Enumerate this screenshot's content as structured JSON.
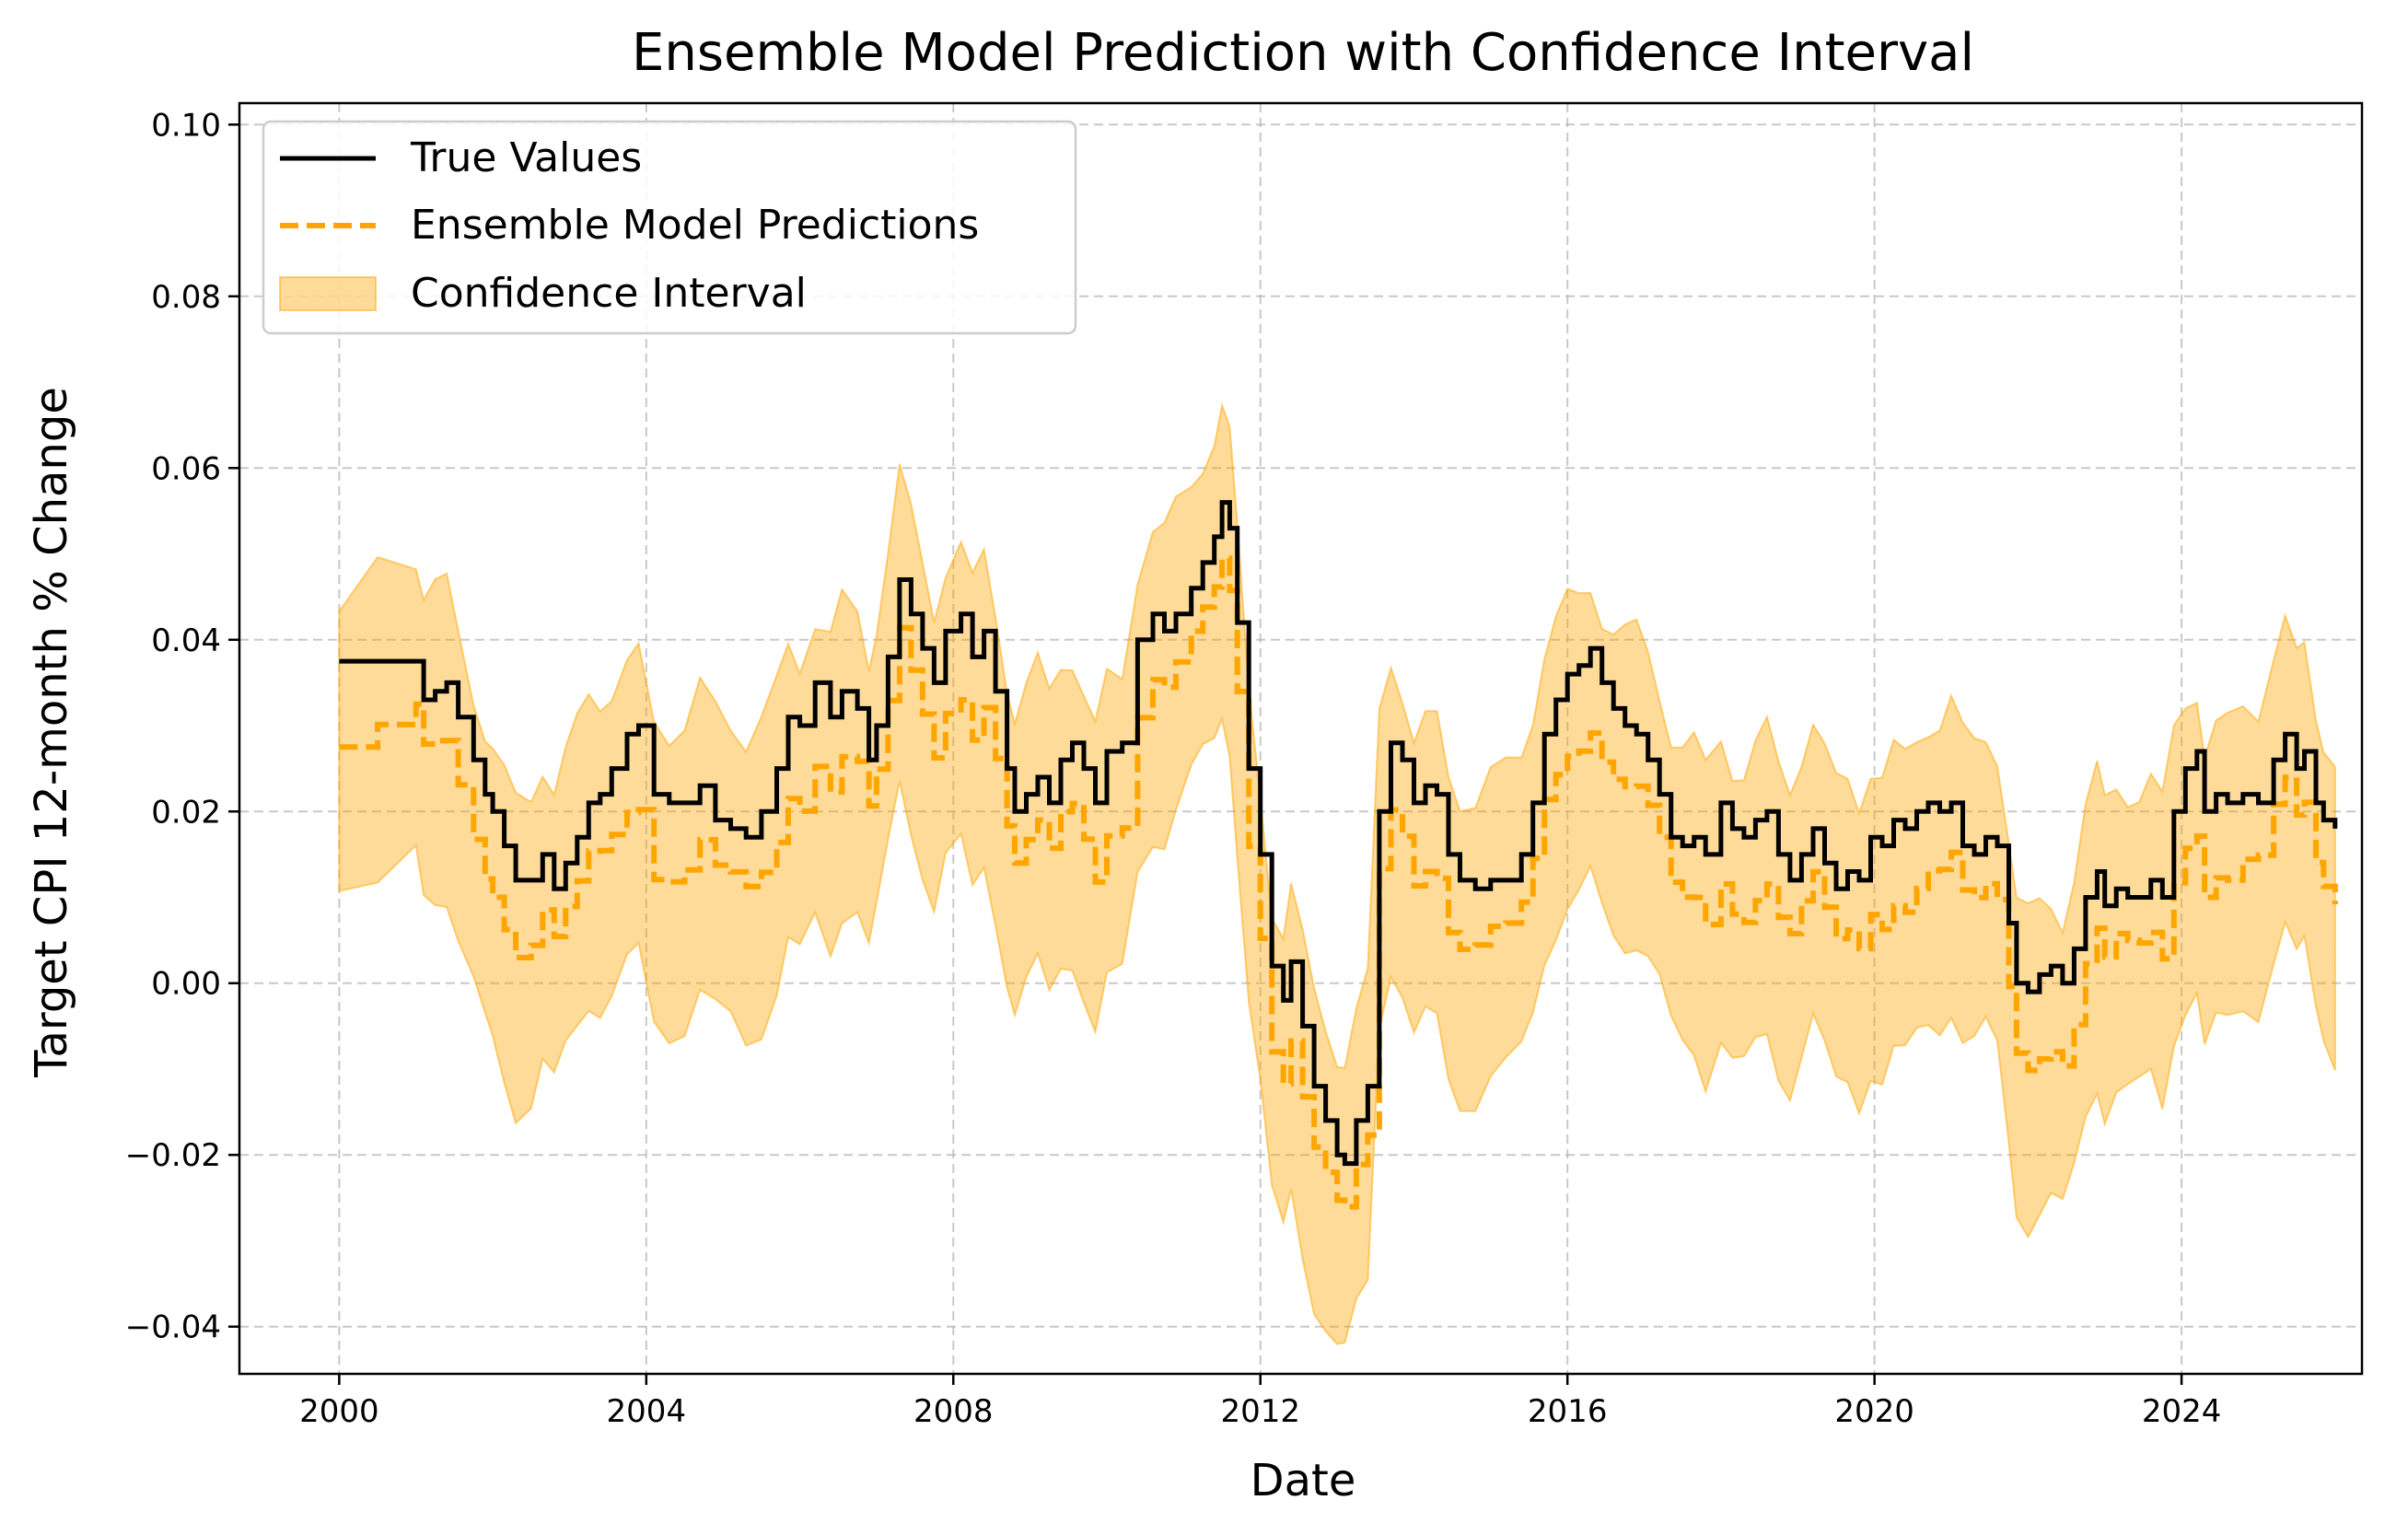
{
  "chart_data": {
    "type": "line",
    "title": "Ensemble Model Prediction with Confidence Interval",
    "xlabel": "Date",
    "ylabel": "Target CPI 12-month % Change",
    "xlim": [
      1998.7,
      2026.35
    ],
    "ylim": [
      -0.0455,
      0.1025
    ],
    "xticks": [
      2000,
      2004,
      2008,
      2012,
      2016,
      2020,
      2024
    ],
    "xtick_labels": [
      "2000",
      "2004",
      "2008",
      "2012",
      "2016",
      "2020",
      "2024"
    ],
    "yticks": [
      -0.04,
      -0.02,
      0.0,
      0.02,
      0.04,
      0.06,
      0.08,
      0.1
    ],
    "ytick_labels": [
      "−0.04",
      "−0.02",
      "0.00",
      "0.02",
      "0.04",
      "0.06",
      "0.08",
      "0.10"
    ],
    "grid": true,
    "legend_position": "top-left",
    "series": [
      {
        "name": "True Values",
        "style": "solid",
        "color": "#000000",
        "points": [
          [
            2000.0,
            0.0375
          ],
          [
            2000.5,
            0.0375
          ],
          [
            2001.0,
            0.0375
          ],
          [
            2001.1,
            0.033
          ],
          [
            2001.25,
            0.034
          ],
          [
            2001.4,
            0.035
          ],
          [
            2001.55,
            0.031
          ],
          [
            2001.75,
            0.026
          ],
          [
            2001.9,
            0.022
          ],
          [
            2002.0,
            0.02
          ],
          [
            2002.15,
            0.016
          ],
          [
            2002.3,
            0.012
          ],
          [
            2002.5,
            0.012
          ],
          [
            2002.65,
            0.015
          ],
          [
            2002.8,
            0.011
          ],
          [
            2002.95,
            0.014
          ],
          [
            2003.1,
            0.017
          ],
          [
            2003.25,
            0.021
          ],
          [
            2003.4,
            0.022
          ],
          [
            2003.55,
            0.025
          ],
          [
            2003.75,
            0.029
          ],
          [
            2003.9,
            0.03
          ],
          [
            2004.1,
            0.022
          ],
          [
            2004.3,
            0.021
          ],
          [
            2004.5,
            0.021
          ],
          [
            2004.7,
            0.023
          ],
          [
            2004.9,
            0.019
          ],
          [
            2005.1,
            0.018
          ],
          [
            2005.3,
            0.017
          ],
          [
            2005.5,
            0.02
          ],
          [
            2005.7,
            0.025
          ],
          [
            2005.85,
            0.031
          ],
          [
            2006.0,
            0.03
          ],
          [
            2006.2,
            0.035
          ],
          [
            2006.4,
            0.031
          ],
          [
            2006.55,
            0.034
          ],
          [
            2006.75,
            0.032
          ],
          [
            2006.9,
            0.026
          ],
          [
            2007.0,
            0.03
          ],
          [
            2007.15,
            0.038
          ],
          [
            2007.3,
            0.047
          ],
          [
            2007.45,
            0.043
          ],
          [
            2007.6,
            0.039
          ],
          [
            2007.75,
            0.035
          ],
          [
            2007.9,
            0.041
          ],
          [
            2008.1,
            0.043
          ],
          [
            2008.25,
            0.038
          ],
          [
            2008.4,
            0.041
          ],
          [
            2008.55,
            0.034
          ],
          [
            2008.7,
            0.025
          ],
          [
            2008.8,
            0.02
          ],
          [
            2008.95,
            0.022
          ],
          [
            2009.1,
            0.024
          ],
          [
            2009.25,
            0.021
          ],
          [
            2009.4,
            0.026
          ],
          [
            2009.55,
            0.028
          ],
          [
            2009.7,
            0.025
          ],
          [
            2009.85,
            0.021
          ],
          [
            2010.0,
            0.027
          ],
          [
            2010.2,
            0.028
          ],
          [
            2010.4,
            0.04
          ],
          [
            2010.6,
            0.043
          ],
          [
            2010.75,
            0.041
          ],
          [
            2010.9,
            0.043
          ],
          [
            2011.1,
            0.046
          ],
          [
            2011.25,
            0.049
          ],
          [
            2011.4,
            0.052
          ],
          [
            2011.5,
            0.056
          ],
          [
            2011.6,
            0.053
          ],
          [
            2011.7,
            0.042
          ],
          [
            2011.85,
            0.025
          ],
          [
            2012.0,
            0.015
          ],
          [
            2012.15,
            0.002
          ],
          [
            2012.3,
            -0.002
          ],
          [
            2012.4,
            0.0025
          ],
          [
            2012.55,
            -0.005
          ],
          [
            2012.7,
            -0.012
          ],
          [
            2012.85,
            -0.016
          ],
          [
            2013.0,
            -0.02
          ],
          [
            2013.1,
            -0.021
          ],
          [
            2013.25,
            -0.016
          ],
          [
            2013.4,
            -0.012
          ],
          [
            2013.55,
            0.02
          ],
          [
            2013.7,
            0.028
          ],
          [
            2013.85,
            0.026
          ],
          [
            2014.0,
            0.021
          ],
          [
            2014.15,
            0.023
          ],
          [
            2014.3,
            0.022
          ],
          [
            2014.45,
            0.015
          ],
          [
            2014.6,
            0.012
          ],
          [
            2014.8,
            0.011
          ],
          [
            2015.0,
            0.012
          ],
          [
            2015.2,
            0.012
          ],
          [
            2015.4,
            0.015
          ],
          [
            2015.55,
            0.021
          ],
          [
            2015.7,
            0.029
          ],
          [
            2015.85,
            0.033
          ],
          [
            2016.0,
            0.036
          ],
          [
            2016.15,
            0.037
          ],
          [
            2016.3,
            0.039
          ],
          [
            2016.45,
            0.035
          ],
          [
            2016.6,
            0.032
          ],
          [
            2016.75,
            0.03
          ],
          [
            2016.9,
            0.029
          ],
          [
            2017.05,
            0.026
          ],
          [
            2017.2,
            0.022
          ],
          [
            2017.35,
            0.017
          ],
          [
            2017.5,
            0.016
          ],
          [
            2017.65,
            0.017
          ],
          [
            2017.8,
            0.015
          ],
          [
            2018.0,
            0.021
          ],
          [
            2018.15,
            0.018
          ],
          [
            2018.3,
            0.017
          ],
          [
            2018.45,
            0.019
          ],
          [
            2018.6,
            0.02
          ],
          [
            2018.75,
            0.015
          ],
          [
            2018.9,
            0.012
          ],
          [
            2019.05,
            0.015
          ],
          [
            2019.2,
            0.018
          ],
          [
            2019.35,
            0.014
          ],
          [
            2019.5,
            0.011
          ],
          [
            2019.65,
            0.013
          ],
          [
            2019.8,
            0.012
          ],
          [
            2019.95,
            0.017
          ],
          [
            2020.1,
            0.016
          ],
          [
            2020.25,
            0.019
          ],
          [
            2020.4,
            0.018
          ],
          [
            2020.55,
            0.02
          ],
          [
            2020.7,
            0.021
          ],
          [
            2020.85,
            0.02
          ],
          [
            2021.0,
            0.021
          ],
          [
            2021.15,
            0.016
          ],
          [
            2021.3,
            0.015
          ],
          [
            2021.45,
            0.017
          ],
          [
            2021.6,
            0.016
          ],
          [
            2021.75,
            0.007
          ],
          [
            2021.85,
            0.0
          ],
          [
            2022.0,
            -0.001
          ],
          [
            2022.15,
            0.001
          ],
          [
            2022.3,
            0.002
          ],
          [
            2022.45,
            0.0
          ],
          [
            2022.6,
            0.004
          ],
          [
            2022.75,
            0.01
          ],
          [
            2022.9,
            0.013
          ],
          [
            2023.0,
            0.009
          ],
          [
            2023.15,
            0.011
          ],
          [
            2023.3,
            0.01
          ],
          [
            2023.45,
            0.01
          ],
          [
            2023.6,
            0.012
          ],
          [
            2023.75,
            0.01
          ],
          [
            2023.9,
            0.02
          ],
          [
            2024.05,
            0.025
          ],
          [
            2024.2,
            0.027
          ],
          [
            2024.3,
            0.02
          ],
          [
            2024.45,
            0.022
          ],
          [
            2024.6,
            0.021
          ],
          [
            2024.8,
            0.022
          ],
          [
            2025.0,
            0.021
          ],
          [
            2025.2,
            0.026
          ],
          [
            2025.35,
            0.029
          ],
          [
            2025.5,
            0.025
          ],
          [
            2025.6,
            0.027
          ],
          [
            2025.75,
            0.021
          ],
          [
            2025.85,
            0.019
          ],
          [
            2026.0,
            0.018
          ]
        ]
      },
      {
        "name": "Ensemble Model Predictions",
        "style": "dashed",
        "color": "#FFA500",
        "points": []
      }
    ],
    "confidence_interval": {
      "name": "Confidence Interval",
      "color": "#FFA500",
      "opacity": 0.4
    }
  }
}
